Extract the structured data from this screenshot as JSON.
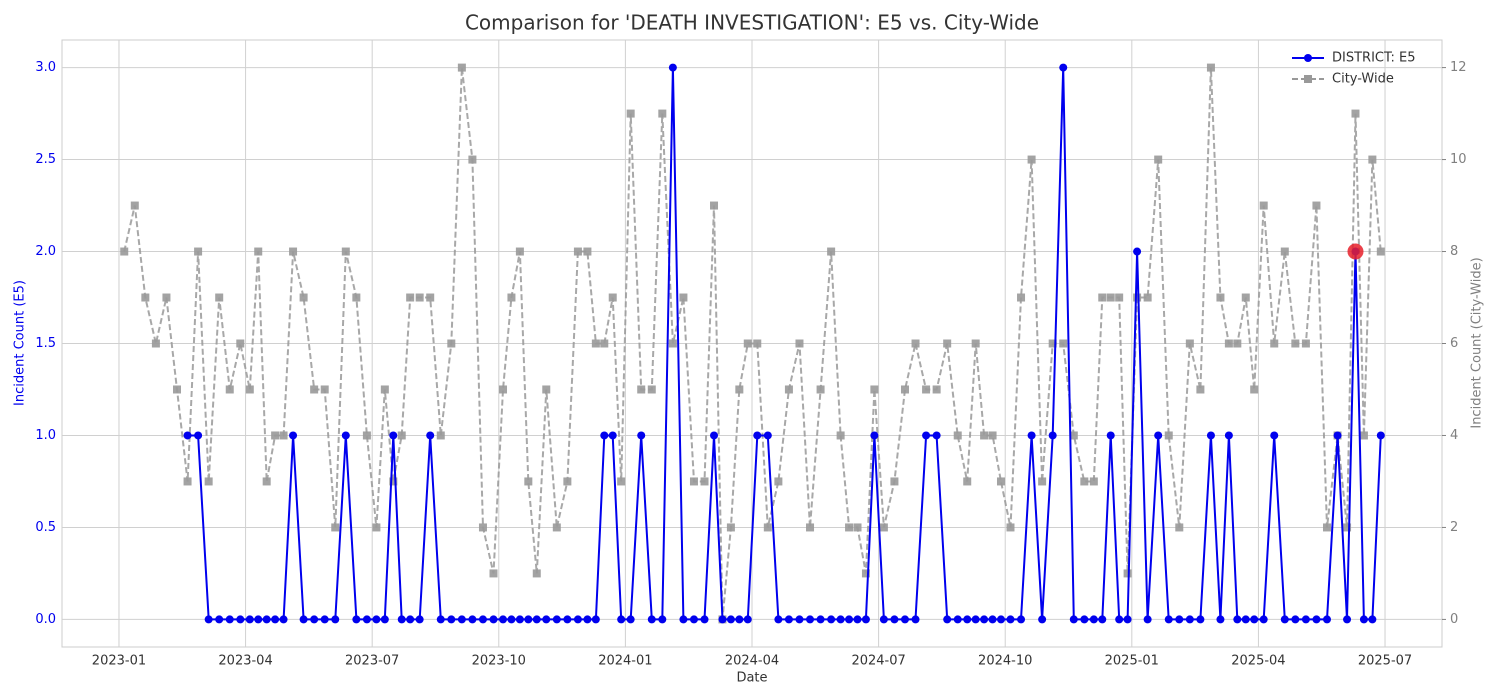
{
  "chart_data": {
    "type": "line",
    "title": "Comparison for 'DEATH INVESTIGATION': E5 vs. City-Wide",
    "xlabel": "Date",
    "ylabel": "Incident Count (E5)",
    "y2label": "Incident Count (City-Wide)",
    "x": [
      "2023-01",
      "2023-01",
      "2023-01",
      "2023-01",
      "2023-02",
      "2023-02",
      "2023-02",
      "2023-02",
      "2023-03",
      "2023-03",
      "2023-03",
      "2023-03",
      "2023-04",
      "2023-04",
      "2023-04",
      "2023-04",
      "2023-04",
      "2023-05",
      "2023-05",
      "2023-05",
      "2023-05",
      "2023-06",
      "2023-06",
      "2023-06",
      "2023-06",
      "2023-07",
      "2023-07",
      "2023-07",
      "2023-07",
      "2023-07",
      "2023-08",
      "2023-08",
      "2023-08",
      "2023-08",
      "2023-09",
      "2023-09",
      "2023-09",
      "2023-09",
      "2023-10",
      "2023-10",
      "2023-10",
      "2023-10",
      "2023-10",
      "2023-11",
      "2023-11",
      "2023-11",
      "2023-11",
      "2023-12",
      "2023-12",
      "2023-12",
      "2023-12",
      "2023-12",
      "2024-01",
      "2024-01",
      "2024-01",
      "2024-01",
      "2024-02",
      "2024-02",
      "2024-02",
      "2024-02",
      "2024-03",
      "2024-03",
      "2024-03",
      "2024-03",
      "2024-03",
      "2024-04",
      "2024-04",
      "2024-04",
      "2024-04",
      "2024-05",
      "2024-05",
      "2024-05",
      "2024-05",
      "2024-06",
      "2024-06",
      "2024-06",
      "2024-06",
      "2024-06",
      "2024-07",
      "2024-07",
      "2024-07",
      "2024-07",
      "2024-08",
      "2024-08",
      "2024-08",
      "2024-08",
      "2024-09",
      "2024-09",
      "2024-09",
      "2024-09",
      "2024-09",
      "2024-10",
      "2024-10",
      "2024-10",
      "2024-10",
      "2024-11",
      "2024-11",
      "2024-11",
      "2024-11",
      "2024-12",
      "2024-12",
      "2024-12",
      "2024-12",
      "2024-12",
      "2025-01",
      "2025-01",
      "2025-01",
      "2025-01",
      "2025-02",
      "2025-02",
      "2025-02",
      "2025-02",
      "2025-03",
      "2025-03",
      "2025-03",
      "2025-03",
      "2025-03",
      "2025-04",
      "2025-04",
      "2025-04",
      "2025-04",
      "2025-05",
      "2025-05",
      "2025-05",
      "2025-05",
      "2025-06",
      "2025-06",
      "2025-06",
      "2025-06",
      "2025-06"
    ],
    "xlim": [
      "2022-12",
      "2025-08"
    ],
    "xticks": [
      "2023-01",
      "2023-04",
      "2023-07",
      "2023-10",
      "2024-01",
      "2024-04",
      "2024-07",
      "2024-10",
      "2025-01",
      "2025-04",
      "2025-07"
    ],
    "ylim": [
      -0.15,
      3.15
    ],
    "yticks": [
      {
        "value": 0,
        "label": "0.0"
      },
      {
        "value": 0.5,
        "label": "0.5"
      },
      {
        "value": 1,
        "label": "1.0"
      },
      {
        "value": 1.5,
        "label": "1.5"
      },
      {
        "value": 2,
        "label": "2.0"
      },
      {
        "value": 2.5,
        "label": "2.5"
      },
      {
        "value": 3,
        "label": "3.0"
      }
    ],
    "y2lim": [
      -0.6,
      12.6
    ],
    "y2ticks": [
      0,
      2,
      4,
      6,
      8,
      10,
      12
    ],
    "grid": true,
    "legend": "upper right",
    "highlight_index": 126,
    "highlight_color": "#e8202a",
    "series": [
      {
        "name": "City-Wide",
        "color": "#999999",
        "axis": "y2",
        "dashed": true,
        "marker": "square",
        "values": [
          8,
          9,
          7,
          6,
          7,
          5,
          3,
          8,
          3,
          7,
          5,
          6,
          5,
          8,
          3,
          4,
          4,
          8,
          7,
          5,
          5,
          2,
          8,
          7,
          4,
          2,
          5,
          3,
          4,
          7,
          7,
          7,
          4,
          6,
          12,
          10,
          2,
          1,
          5,
          7,
          8,
          3,
          1,
          5,
          2,
          3,
          8,
          8,
          6,
          6,
          7,
          3,
          11,
          5,
          5,
          11,
          6,
          7,
          3,
          3,
          9,
          0,
          2,
          5,
          6,
          6,
          2,
          3,
          5,
          6,
          2,
          5,
          8,
          4,
          2,
          2,
          1,
          5,
          2,
          3,
          5,
          6,
          5,
          5,
          6,
          4,
          3,
          6,
          4,
          4,
          3,
          2,
          7,
          10,
          3,
          6,
          6,
          4,
          3,
          3,
          7,
          7,
          7,
          1,
          7,
          7,
          10,
          4,
          2,
          6,
          5,
          12,
          7,
          6,
          6,
          7,
          5,
          9,
          6,
          8,
          6,
          6,
          9,
          2,
          4,
          2,
          11,
          4,
          10,
          8
        ]
      },
      {
        "name": "DISTRICT: E5",
        "color": "#0000ee",
        "axis": "y",
        "dashed": false,
        "marker": "circle",
        "values": [
          null,
          null,
          null,
          null,
          null,
          null,
          1,
          1,
          0,
          0,
          0,
          0,
          0,
          0,
          0,
          0,
          0,
          1,
          0,
          0,
          0,
          0,
          1,
          0,
          0,
          0,
          0,
          1,
          0,
          0,
          0,
          1,
          0,
          0,
          0,
          0,
          0,
          0,
          0,
          0,
          0,
          0,
          0,
          0,
          0,
          0,
          0,
          0,
          0,
          1,
          1,
          0,
          0,
          1,
          0,
          0,
          3,
          0,
          0,
          0,
          1,
          0,
          0,
          0,
          0,
          1,
          1,
          0,
          0,
          0,
          0,
          0,
          0,
          0,
          0,
          0,
          0,
          1,
          0,
          0,
          0,
          0,
          1,
          1,
          0,
          0,
          0,
          0,
          0,
          0,
          0,
          0,
          0,
          1,
          0,
          1,
          3,
          0,
          0,
          0,
          0,
          1,
          0,
          0,
          2,
          0,
          1,
          0,
          0,
          0,
          0,
          1,
          0,
          1,
          0,
          0,
          0,
          0,
          1,
          0,
          0,
          0,
          0,
          0,
          1,
          0,
          2,
          0,
          0,
          1
        ]
      }
    ]
  }
}
